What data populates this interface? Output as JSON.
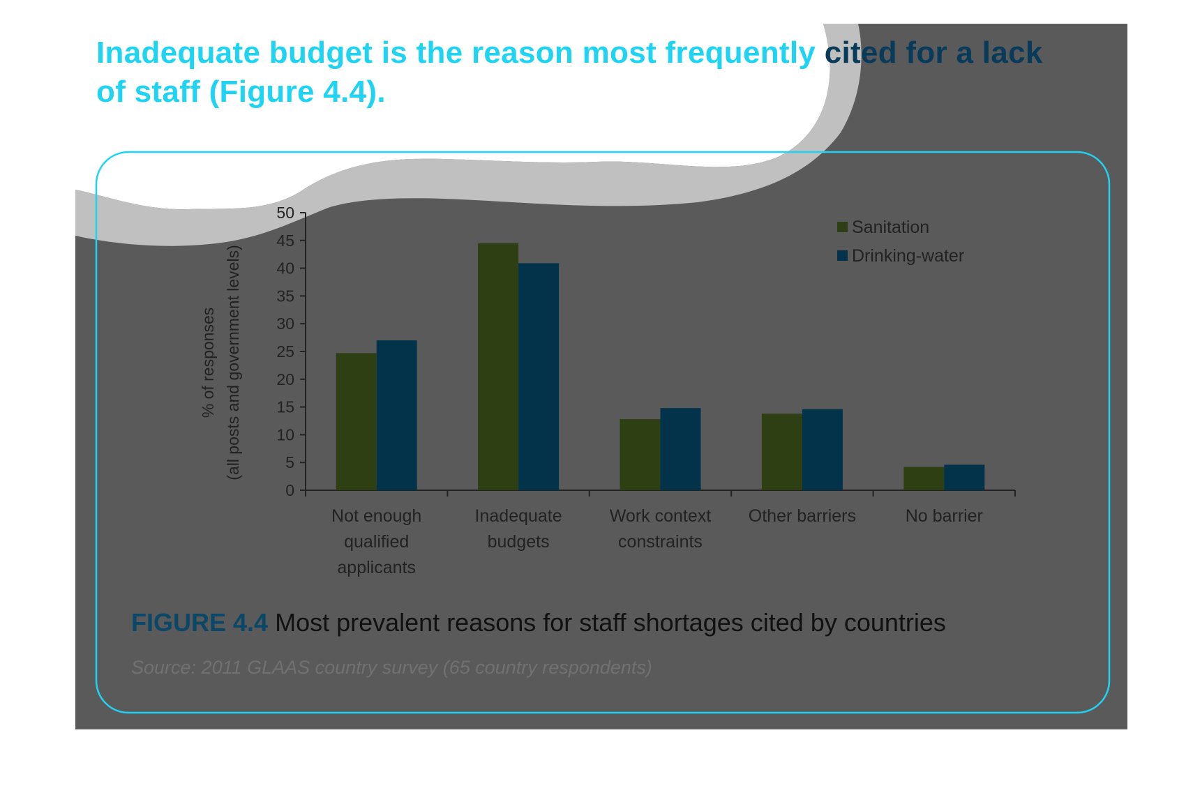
{
  "headline": {
    "part1": "Inadequate budget is the reason most frequently ",
    "part2": "cited for a lack",
    "part3": "of staff (Figure 4.4)."
  },
  "figure": {
    "label": "FIGURE 4.4",
    "caption": "Most prevalent reasons for staff shortages cited by countries",
    "source": "Source: 2011 GLAAS country survey (65 country respondents)"
  },
  "colors": {
    "sanitation": "#2f3f14",
    "drinking_water": "#02334a",
    "panel_bg": "#5a5a5a",
    "wave": "#c0c0c0",
    "headline": "#1fd3f2"
  },
  "chart_data": {
    "type": "bar",
    "ylabel": [
      "% of responses",
      "(all posts and government levels)"
    ],
    "ylim": [
      0,
      50
    ],
    "yticks": [
      0,
      5,
      10,
      15,
      20,
      25,
      30,
      35,
      40,
      45,
      50
    ],
    "grid": false,
    "legend_position": "top-right",
    "categories": [
      [
        "Not enough",
        "qualified",
        "applicants"
      ],
      [
        "Inadequate",
        "budgets"
      ],
      [
        "Work context",
        "constraints"
      ],
      [
        "Other barriers"
      ],
      [
        "No barrier"
      ]
    ],
    "series": [
      {
        "name": "Sanitation",
        "color": "#2f3f14",
        "values": [
          24.7,
          44.5,
          12.8,
          13.8,
          4.2
        ]
      },
      {
        "name": "Drinking-water",
        "color": "#02334a",
        "values": [
          27.0,
          40.9,
          14.8,
          14.6,
          4.6
        ]
      }
    ]
  }
}
